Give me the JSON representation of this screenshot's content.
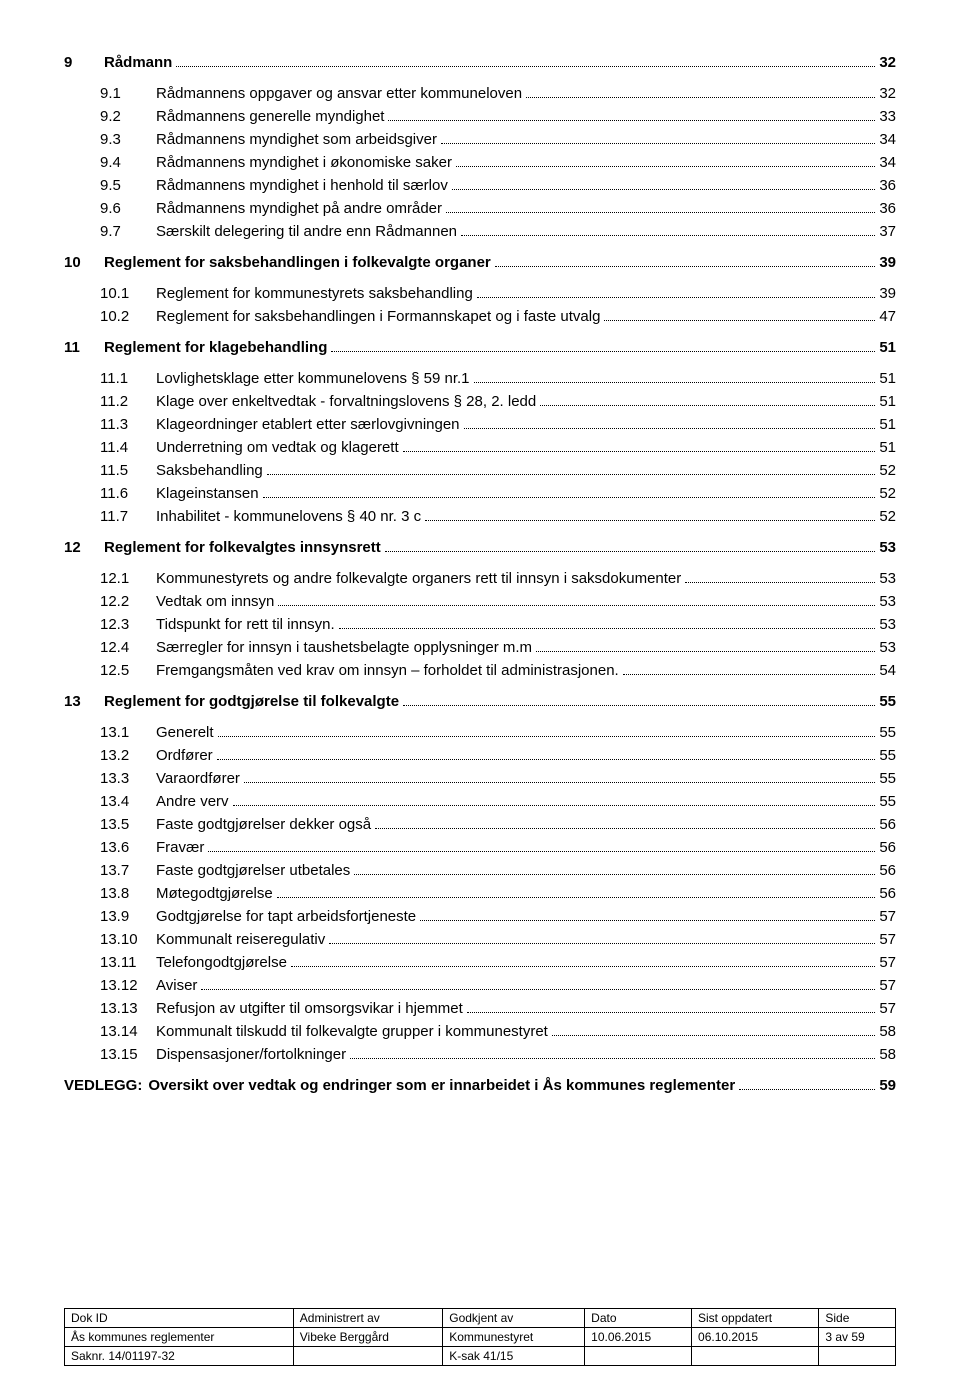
{
  "toc": {
    "sections": [
      {
        "num": "9",
        "title": "Rådmann",
        "page": "32",
        "items": [
          {
            "num": "9.1",
            "title": "Rådmannens oppgaver og ansvar etter kommuneloven",
            "page": "32"
          },
          {
            "num": "9.2",
            "title": "Rådmannens generelle myndighet",
            "page": "33"
          },
          {
            "num": "9.3",
            "title": "Rådmannens myndighet som arbeidsgiver",
            "page": "34"
          },
          {
            "num": "9.4",
            "title": "Rådmannens myndighet i økonomiske saker",
            "page": "34"
          },
          {
            "num": "9.5",
            "title": "Rådmannens myndighet i henhold til særlov",
            "page": "36"
          },
          {
            "num": "9.6",
            "title": "Rådmannens myndighet på andre områder",
            "page": "36"
          },
          {
            "num": "9.7",
            "title": "Særskilt delegering til andre enn Rådmannen",
            "page": "37"
          }
        ]
      },
      {
        "num": "10",
        "title": "Reglement for saksbehandlingen i folkevalgte organer",
        "page": "39",
        "items": [
          {
            "num": "10.1",
            "title": "Reglement for kommunestyrets saksbehandling",
            "page": "39"
          },
          {
            "num": "10.2",
            "title": "Reglement for saksbehandlingen i Formannskapet og i faste utvalg",
            "page": "47"
          }
        ]
      },
      {
        "num": "11",
        "title": "Reglement for klagebehandling",
        "page": "51",
        "items": [
          {
            "num": "11.1",
            "title": "Lovlighetsklage etter kommunelovens § 59 nr.1",
            "page": "51"
          },
          {
            "num": "11.2",
            "title": "Klage over enkeltvedtak - forvaltningslovens § 28, 2. ledd",
            "page": "51"
          },
          {
            "num": "11.3",
            "title": "Klageordninger etablert etter særlovgivningen",
            "page": "51"
          },
          {
            "num": "11.4",
            "title": "Underretning om vedtak og klagerett",
            "page": "51"
          },
          {
            "num": "11.5",
            "title": "Saksbehandling",
            "page": "52"
          },
          {
            "num": "11.6",
            "title": "Klageinstansen",
            "page": "52"
          },
          {
            "num": "11.7",
            "title": "Inhabilitet - kommunelovens § 40 nr. 3 c",
            "page": "52"
          }
        ]
      },
      {
        "num": "12",
        "title": "Reglement for folkevalgtes innsynsrett",
        "page": "53",
        "items": [
          {
            "num": "12.1",
            "title": "Kommunestyrets og andre folkevalgte organers rett til innsyn i saksdokumenter",
            "page": "53"
          },
          {
            "num": "12.2",
            "title": "Vedtak om innsyn",
            "page": "53"
          },
          {
            "num": "12.3",
            "title": "Tidspunkt for rett til innsyn.",
            "page": "53"
          },
          {
            "num": "12.4",
            "title": "Særregler for innsyn i taushetsbelagte opplysninger m.m",
            "page": "53"
          },
          {
            "num": "12.5",
            "title": "Fremgangsmåten ved krav om innsyn – forholdet til administrasjonen.",
            "page": "54"
          }
        ]
      },
      {
        "num": "13",
        "title": "Reglement for godtgjørelse til folkevalgte",
        "page": "55",
        "items": [
          {
            "num": "13.1",
            "title": "Generelt",
            "page": "55"
          },
          {
            "num": "13.2",
            "title": "Ordfører",
            "page": "55"
          },
          {
            "num": "13.3",
            "title": "Varaordfører",
            "page": "55"
          },
          {
            "num": "13.4",
            "title": "Andre verv",
            "page": "55"
          },
          {
            "num": "13.5",
            "title": "Faste godtgjørelser dekker også",
            "page": "56"
          },
          {
            "num": "13.6",
            "title": "Fravær",
            "page": "56"
          },
          {
            "num": "13.7",
            "title": "Faste godtgjørelser utbetales",
            "page": "56"
          },
          {
            "num": "13.8",
            "title": "Møtegodtgjørelse",
            "page": "56"
          },
          {
            "num": "13.9",
            "title": "Godtgjørelse for tapt arbeidsfortjeneste",
            "page": "57"
          },
          {
            "num": "13.10",
            "title": "Kommunalt reiseregulativ",
            "page": "57"
          },
          {
            "num": "13.11",
            "title": "Telefongodtgjørelse",
            "page": "57"
          },
          {
            "num": "13.12",
            "title": "Aviser",
            "page": "57"
          },
          {
            "num": "13.13",
            "title": "Refusjon av utgifter til omsorgsvikar i hjemmet",
            "page": "57"
          },
          {
            "num": "13.14",
            "title": "Kommunalt tilskudd til folkevalgte grupper i kommunestyret",
            "page": "58"
          },
          {
            "num": "13.15",
            "title": "Dispensasjoner/fortolkninger",
            "page": "58"
          }
        ]
      }
    ],
    "appendix": {
      "label": "VEDLEGG:",
      "title": "Oversikt over vedtak og endringer som er innarbeidet i Ås kommunes reglementer",
      "page": "59"
    }
  },
  "footer": {
    "headers": [
      "Dok ID",
      "Administrert av",
      "Godkjent av",
      "Dato",
      "Sist oppdatert",
      "Side"
    ],
    "row1": [
      "Ås kommunes reglementer",
      "Vibeke Berggård",
      "Kommunestyret",
      "10.06.2015",
      "06.10.2015",
      "3 av 59"
    ],
    "row2": [
      "Saknr. 14/01197-32",
      "",
      "K-sak 41/15",
      "",
      "",
      ""
    ]
  }
}
